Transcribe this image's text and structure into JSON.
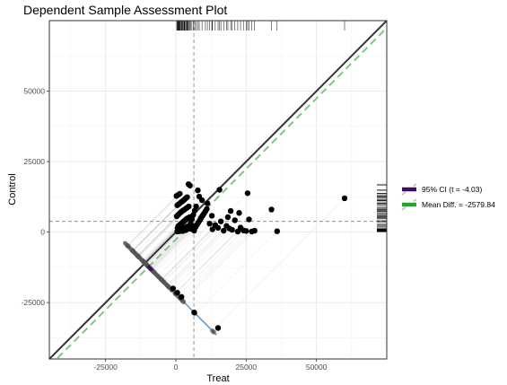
{
  "chart_data": {
    "type": "scatter",
    "title": "Dependent Sample Assessment Plot",
    "xlabel": "Treat",
    "ylabel": "Control",
    "xlim": [
      -45000,
      75000
    ],
    "ylim": [
      -45000,
      75000
    ],
    "x_ticks": [
      -25000,
      0,
      25000,
      50000
    ],
    "y_ticks": [
      -25000,
      0,
      25000,
      50000
    ],
    "x_tick_labels": [
      "-25000",
      "0",
      "25000",
      "50000"
    ],
    "y_tick_labels": [
      "-25000",
      "0",
      "25000",
      "50000"
    ],
    "grid": true,
    "legend_position": "right",
    "legend": [
      {
        "label": "95% CI (t = -4.03)",
        "color": "#3b0f5f"
      },
      {
        "label": "Mean Diff. = -2579.84",
        "color": "#2ca02c"
      }
    ],
    "mean_treat": 6400,
    "mean_control": 3800,
    "mean_diff": -2579.84,
    "ci_diff": [
      -5200,
      -1900
    ],
    "colors": {
      "identity_line": "#333333",
      "mean_diff_line": "#7fc97f",
      "ci_marker": "#3b0f5f",
      "difference_axis": "#5b8fb8",
      "points": "#000000"
    },
    "points": [
      [
        500,
        200
      ],
      [
        800,
        500
      ],
      [
        1200,
        300
      ],
      [
        1500,
        800
      ],
      [
        2000,
        1000
      ],
      [
        2500,
        400
      ],
      [
        3000,
        1500
      ],
      [
        3500,
        700
      ],
      [
        4000,
        2000
      ],
      [
        4500,
        1200
      ],
      [
        600,
        1500
      ],
      [
        900,
        2200
      ],
      [
        1400,
        2600
      ],
      [
        1900,
        3000
      ],
      [
        2400,
        3500
      ],
      [
        2900,
        3900
      ],
      [
        3400,
        4300
      ],
      [
        3900,
        4800
      ],
      [
        4400,
        5000
      ],
      [
        4900,
        5300
      ],
      [
        300,
        5600
      ],
      [
        700,
        6000
      ],
      [
        1100,
        6400
      ],
      [
        1600,
        6900
      ],
      [
        2100,
        7300
      ],
      [
        2600,
        7700
      ],
      [
        3100,
        8000
      ],
      [
        3600,
        8400
      ],
      [
        4100,
        8700
      ],
      [
        4600,
        9100
      ],
      [
        500,
        9500
      ],
      [
        1000,
        9900
      ],
      [
        1500,
        10300
      ],
      [
        2000,
        10700
      ],
      [
        2500,
        11100
      ],
      [
        3000,
        11500
      ],
      [
        3500,
        12000
      ],
      [
        4000,
        12400
      ],
      [
        200,
        12800
      ],
      [
        800,
        13200
      ],
      [
        1400,
        13600
      ],
      [
        5200,
        3100
      ],
      [
        5700,
        4600
      ],
      [
        6200,
        6100
      ],
      [
        6700,
        7600
      ],
      [
        7200,
        9100
      ],
      [
        5500,
        1100
      ],
      [
        6000,
        2100
      ],
      [
        6500,
        500
      ],
      [
        7000,
        1800
      ],
      [
        7500,
        2600
      ],
      [
        8000,
        3400
      ],
      [
        8500,
        4200
      ],
      [
        9000,
        5000
      ],
      [
        9500,
        5800
      ],
      [
        10000,
        6600
      ],
      [
        10500,
        7400
      ],
      [
        11000,
        8200
      ],
      [
        12000,
        3000
      ],
      [
        13000,
        1000
      ],
      [
        14000,
        2500
      ],
      [
        15000,
        1500
      ],
      [
        16000,
        3800
      ],
      [
        17000,
        500
      ],
      [
        18000,
        2200
      ],
      [
        19000,
        1300
      ],
      [
        20000,
        800
      ],
      [
        21000,
        4200
      ],
      [
        22000,
        200
      ],
      [
        23000,
        1600
      ],
      [
        24000,
        600
      ],
      [
        25000,
        400
      ],
      [
        26000,
        4500
      ],
      [
        27000,
        200
      ],
      [
        28000,
        500
      ],
      [
        36000,
        300
      ],
      [
        34000,
        8000
      ],
      [
        60000,
        12000
      ],
      [
        25500,
        13800
      ],
      [
        15500,
        15000
      ],
      [
        4500,
        17000
      ],
      [
        5000,
        16500
      ],
      [
        7800,
        14800
      ],
      [
        8300,
        12600
      ],
      [
        9300,
        11300
      ],
      [
        11200,
        10200
      ],
      [
        12800,
        5800
      ],
      [
        18500,
        5300
      ],
      [
        19500,
        7500
      ],
      [
        22500,
        6800
      ],
      [
        -17000,
        -3000
      ],
      [
        -16000,
        -4000
      ],
      [
        -15000,
        -5000
      ],
      [
        -14000,
        -6000
      ],
      [
        -13000,
        -7000
      ],
      [
        -12000,
        -8000
      ],
      [
        -11000,
        -9000
      ],
      [
        -10500,
        -9500
      ],
      [
        -10000,
        -10000
      ],
      [
        -9500,
        -10500
      ],
      [
        -9000,
        -11000
      ],
      [
        -8500,
        -11500
      ],
      [
        -8000,
        -12000
      ],
      [
        -7500,
        -12500
      ],
      [
        -7000,
        -13000
      ],
      [
        -6500,
        -13500
      ],
      [
        -6000,
        -14000
      ],
      [
        -5500,
        -14500
      ],
      [
        -5000,
        -15000
      ],
      [
        -4500,
        -15500
      ],
      [
        -4000,
        -16000
      ],
      [
        -3500,
        -16500
      ],
      [
        -3000,
        -17000
      ],
      [
        -2500,
        -17500
      ],
      [
        -13500,
        -6500
      ],
      [
        -12500,
        -7500
      ],
      [
        -11500,
        -8500
      ],
      [
        -8800,
        -11200
      ],
      [
        -6800,
        -13200
      ],
      [
        -4800,
        -15200
      ],
      [
        -2000,
        -19000
      ],
      [
        -1000,
        -20000
      ],
      [
        500,
        -21500
      ],
      [
        2000,
        -23000
      ],
      [
        6500,
        -28500
      ],
      [
        15000,
        -34000
      ]
    ],
    "rug_x": [
      500,
      800,
      1200,
      1500,
      2000,
      2500,
      3000,
      3500,
      4000,
      4500,
      5200,
      5700,
      6200,
      6700,
      7200,
      7800,
      8300,
      9300,
      10500,
      11200,
      12000,
      12800,
      13000,
      14000,
      15000,
      15500,
      16000,
      17000,
      18000,
      18500,
      19500,
      20000,
      21000,
      22000,
      23000,
      24000,
      25000,
      25500,
      26000,
      27000,
      28000,
      34000,
      36000,
      60000,
      600,
      900,
      1400,
      1900,
      2400,
      2900,
      3400,
      3900,
      4400,
      4900,
      300,
      700,
      1100,
      1600,
      2100,
      2600,
      3100,
      3600,
      4100,
      4600
    ],
    "rug_y": [
      200,
      500,
      300,
      800,
      1000,
      400,
      1500,
      700,
      2000,
      1200,
      2200,
      2600,
      3000,
      3500,
      3900,
      4300,
      4800,
      5000,
      5300,
      5600,
      6000,
      6400,
      6900,
      7300,
      7700,
      8000,
      8400,
      8700,
      9100,
      9500,
      9900,
      10300,
      10700,
      11100,
      11500,
      12000,
      12400,
      12800,
      13200,
      13600,
      17000,
      16500,
      14800,
      12600,
      11300,
      10200,
      5800,
      5300,
      7500,
      6800,
      15000,
      13800,
      12000,
      8000,
      100,
      250,
      350,
      450,
      550,
      650,
      750,
      850,
      950,
      1050
    ]
  }
}
